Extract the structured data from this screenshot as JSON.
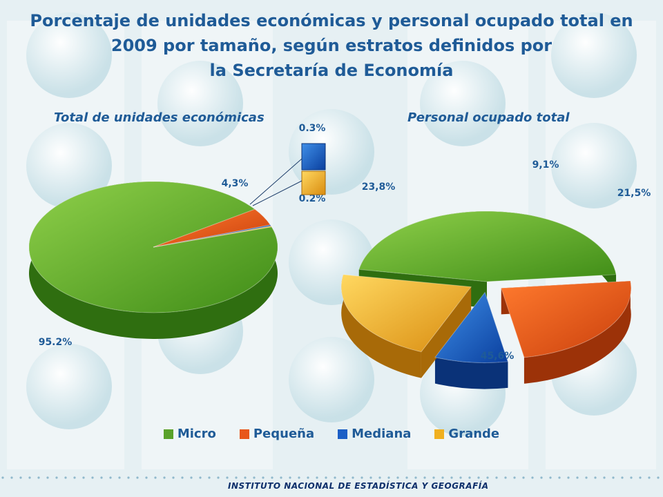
{
  "title": {
    "line1": "Porcentaje de unidades económicas y personal ocupado total en",
    "line2": "2009 por tamaño, según estratos definidos por",
    "line3": "la Secretaría de Economía"
  },
  "colors": {
    "Micro": "#5aa22a",
    "Pequeña": "#e8561a",
    "Mediana": "#1b5fc6",
    "Grande": "#f0b020",
    "text": "#1f5b97"
  },
  "legend": [
    "Micro",
    "Pequeña",
    "Mediana",
    "Grande"
  ],
  "chart_data": [
    {
      "type": "pie",
      "title": "Total de unidades económicas",
      "categories": [
        "Micro",
        "Pequeña",
        "Mediana",
        "Grande"
      ],
      "values": [
        95.2,
        4.3,
        0.3,
        0.2
      ],
      "labels": [
        "95.2%",
        "4,3%",
        "0.3%",
        "0.2%"
      ]
    },
    {
      "type": "pie",
      "title": "Personal ocupado total",
      "categories": [
        "Micro",
        "Pequeña",
        "Mediana",
        "Grande"
      ],
      "values": [
        45.6,
        23.8,
        9.1,
        21.5
      ],
      "labels": [
        "45,6%",
        "23,8%",
        "9,1%",
        "21,5%"
      ]
    }
  ],
  "footer": "INSTITUTO NACIONAL DE ESTADÍSTICA Y GEOGRAFÍA"
}
